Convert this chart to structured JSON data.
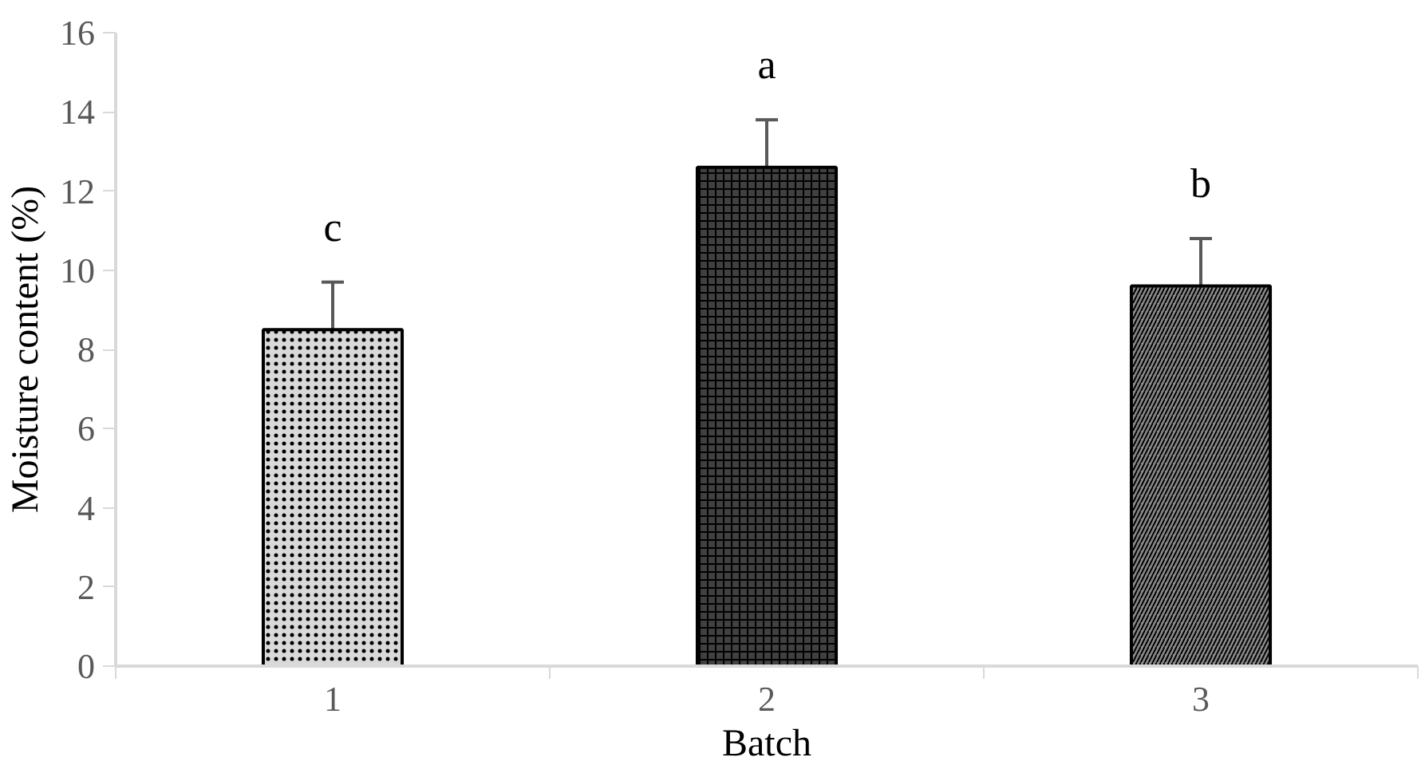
{
  "chart_data": {
    "type": "bar",
    "xlabel": "Batch",
    "ylabel": "Moisture content (%)",
    "categories": [
      "1",
      "2",
      "3"
    ],
    "values": [
      8.5,
      12.6,
      9.6
    ],
    "errors": [
      1.2,
      1.2,
      1.2
    ],
    "colors": [
      "#d9d9d9",
      "#404040",
      "#8c8c8c"
    ],
    "ylim": [
      0,
      16
    ],
    "yticks": [
      0,
      2,
      4,
      6,
      8,
      10,
      12,
      14,
      16
    ],
    "grid": false,
    "annotations": [
      "c",
      "a",
      "b"
    ]
  }
}
